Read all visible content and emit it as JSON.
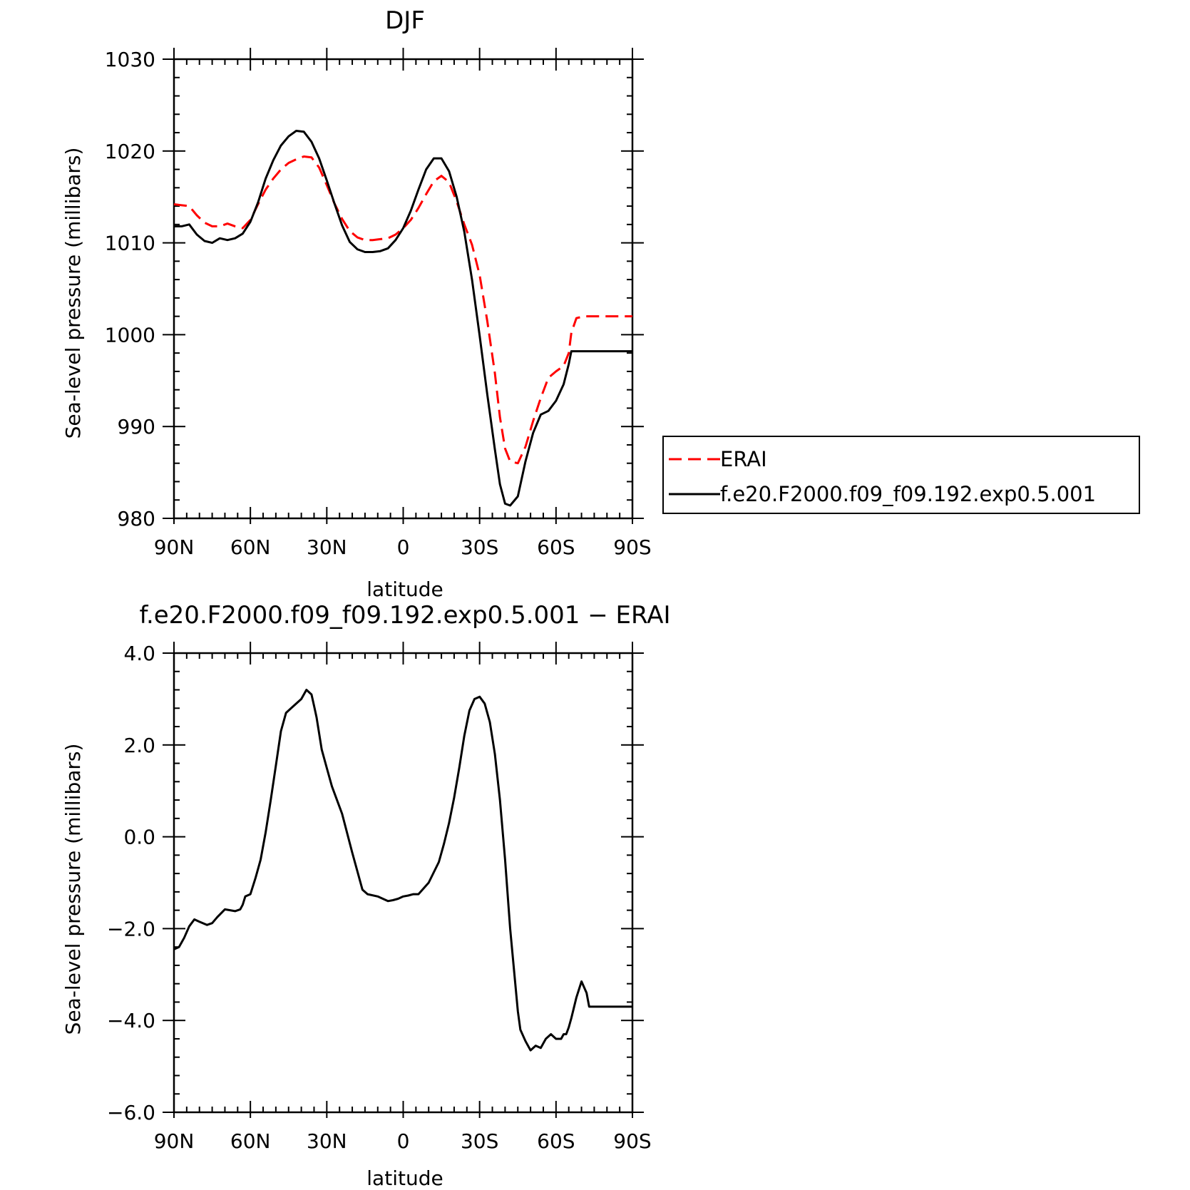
{
  "chart_data": [
    {
      "type": "line",
      "title": "DJF",
      "xlabel": "latitude",
      "ylabel": "Sea-level pressure (millibars)",
      "xlim": [
        90,
        -90
      ],
      "ylim": [
        980,
        1030
      ],
      "xticks": [
        {
          "value": 90,
          "label": "90N"
        },
        {
          "value": 60,
          "label": "60N"
        },
        {
          "value": 30,
          "label": "30N"
        },
        {
          "value": 0,
          "label": "0"
        },
        {
          "value": -30,
          "label": "30S"
        },
        {
          "value": -60,
          "label": "60S"
        },
        {
          "value": -90,
          "label": "90S"
        }
      ],
      "yticks": [
        {
          "value": 980,
          "label": "980"
        },
        {
          "value": 990,
          "label": "990"
        },
        {
          "value": 1000,
          "label": "1000"
        },
        {
          "value": 1010,
          "label": "1010"
        },
        {
          "value": 1020,
          "label": "1020"
        },
        {
          "value": 1030,
          "label": "1030"
        }
      ],
      "legend": "outside-right",
      "series": [
        {
          "name": "ERAI",
          "color": "#ff0000",
          "dash": "dashed",
          "x": [
            90,
            84,
            81,
            78,
            75,
            72,
            69,
            66,
            63,
            60,
            57,
            54,
            51,
            48,
            45,
            42,
            39,
            36,
            33,
            30,
            27,
            24,
            21,
            18,
            15,
            12,
            9,
            6,
            3,
            0,
            -3,
            -6,
            -9,
            -12,
            -15,
            -18,
            -21,
            -24,
            -27,
            -30,
            -33,
            -36,
            -38,
            -40,
            -42,
            -45,
            -48,
            -51,
            -54,
            -57,
            -60,
            -63,
            -65,
            -66,
            -68,
            -71,
            -74,
            -77,
            -80,
            -83,
            -86,
            -88,
            -90
          ],
          "y": [
            1014.2,
            1014.0,
            1013.0,
            1012.2,
            1011.8,
            1011.8,
            1012.1,
            1011.8,
            1011.6,
            1012.5,
            1014.2,
            1015.8,
            1017.0,
            1018.0,
            1018.7,
            1019.1,
            1019.4,
            1019.3,
            1018.2,
            1016.3,
            1014.3,
            1012.6,
            1011.3,
            1010.6,
            1010.3,
            1010.3,
            1010.4,
            1010.5,
            1010.9,
            1011.6,
            1012.5,
            1013.8,
            1015.3,
            1016.7,
            1017.3,
            1016.6,
            1014.5,
            1012.0,
            1009.8,
            1006.5,
            1001.5,
            995.8,
            991.0,
            987.6,
            986.2,
            986.0,
            987.8,
            990.6,
            993.1,
            995.3,
            996.0,
            996.6,
            998.0,
            1000.2,
            1001.8,
            1002.0,
            1002.0,
            1002.0,
            1002.0,
            1002.0,
            1002.0,
            1002.0,
            1002.0
          ]
        },
        {
          "name": "f.e20.F2000.f09_f09.192.exp0.5.001",
          "color": "#000000",
          "dash": "solid",
          "x": [
            90,
            87,
            84,
            81,
            78,
            75,
            72,
            69,
            66,
            63,
            60,
            57,
            54,
            51,
            48,
            45,
            42,
            39,
            36,
            33,
            30,
            27,
            24,
            21,
            18,
            15,
            12,
            9,
            6,
            3,
            0,
            -3,
            -6,
            -9,
            -12,
            -15,
            -18,
            -21,
            -24,
            -27,
            -30,
            -33,
            -36,
            -38,
            -40,
            -42,
            -45,
            -48,
            -51,
            -54,
            -57,
            -60,
            -63,
            -65,
            -66,
            -68,
            -71,
            -74,
            -77,
            -80,
            -83,
            -86,
            -88,
            -90
          ],
          "y": [
            1011.8,
            1011.8,
            1012.0,
            1010.9,
            1010.2,
            1010.0,
            1010.5,
            1010.3,
            1010.5,
            1011.0,
            1012.3,
            1014.4,
            1017.0,
            1019.0,
            1020.6,
            1021.6,
            1022.2,
            1022.1,
            1021.0,
            1019.2,
            1016.8,
            1014.3,
            1011.9,
            1010.1,
            1009.3,
            1009.0,
            1009.0,
            1009.1,
            1009.4,
            1010.3,
            1011.6,
            1013.5,
            1015.8,
            1018.0,
            1019.2,
            1019.2,
            1017.8,
            1015.0,
            1011.2,
            1006.0,
            999.9,
            993.5,
            987.5,
            983.7,
            981.6,
            981.4,
            982.4,
            986.2,
            989.3,
            991.3,
            991.7,
            992.8,
            994.6,
            996.8,
            998.2,
            998.2,
            998.2,
            998.2,
            998.2,
            998.2,
            998.2,
            998.2,
            998.2,
            998.2
          ]
        }
      ]
    },
    {
      "type": "line",
      "title": "f.e20.F2000.f09_f09.192.exp0.5.001 − ERAI",
      "xlabel": "latitude",
      "ylabel": "Sea-level pressure (millibars)",
      "xlim": [
        90,
        -90
      ],
      "ylim": [
        -6,
        4
      ],
      "xticks": [
        {
          "value": 90,
          "label": "90N"
        },
        {
          "value": 60,
          "label": "60N"
        },
        {
          "value": 30,
          "label": "30N"
        },
        {
          "value": 0,
          "label": "0"
        },
        {
          "value": -30,
          "label": "30S"
        },
        {
          "value": -60,
          "label": "60S"
        },
        {
          "value": -90,
          "label": "90S"
        }
      ],
      "yticks": [
        {
          "value": -6,
          "label": "−6.0"
        },
        {
          "value": -4,
          "label": "−4.0"
        },
        {
          "value": -2,
          "label": "−2.0"
        },
        {
          "value": 0,
          "label": "0.0"
        },
        {
          "value": 2,
          "label": "2.0"
        },
        {
          "value": 4,
          "label": "4.0"
        }
      ],
      "series": [
        {
          "name": "f.e20.F2000.f09_f09.192.exp0.5.001 − ERAI",
          "color": "#000000",
          "dash": "solid",
          "x": [
            90,
            88,
            86,
            84,
            82,
            80,
            77,
            75,
            73,
            70,
            68,
            66,
            64,
            63,
            62,
            60,
            58,
            56,
            54,
            52,
            50,
            48,
            46,
            44,
            42,
            40,
            38,
            36,
            35,
            34,
            32,
            30,
            28,
            24,
            20,
            18,
            16,
            14,
            10,
            8,
            6,
            4,
            2,
            0,
            -2,
            -4,
            -6,
            -10,
            -14,
            -16,
            -18,
            -20,
            -22,
            -24,
            -26,
            -28,
            -30,
            -32,
            -34,
            -36,
            -38,
            -40,
            -42,
            -44,
            -45,
            -46,
            -48,
            -50,
            -52,
            -54,
            -56,
            -58,
            -60,
            -62,
            -63,
            -64,
            -65,
            -66,
            -68,
            -70,
            -72,
            -73,
            -74,
            -76,
            -78,
            -80,
            -82,
            -84,
            -86,
            -88,
            -90
          ],
          "y": [
            -2.45,
            -2.4,
            -2.2,
            -1.95,
            -1.8,
            -1.85,
            -1.92,
            -1.88,
            -1.75,
            -1.58,
            -1.6,
            -1.62,
            -1.58,
            -1.48,
            -1.3,
            -1.25,
            -0.9,
            -0.5,
            0.1,
            0.8,
            1.55,
            2.3,
            2.7,
            2.8,
            2.9,
            3.0,
            3.2,
            3.1,
            2.85,
            2.6,
            1.9,
            1.5,
            1.1,
            0.5,
            -0.35,
            -0.75,
            -1.15,
            -1.25,
            -1.3,
            -1.35,
            -1.4,
            -1.38,
            -1.35,
            -1.3,
            -1.28,
            -1.25,
            -1.25,
            -1.0,
            -0.55,
            -0.15,
            0.3,
            0.85,
            1.5,
            2.2,
            2.75,
            3.0,
            3.05,
            2.9,
            2.5,
            1.8,
            0.8,
            -0.5,
            -2.0,
            -3.2,
            -3.8,
            -4.2,
            -4.45,
            -4.65,
            -4.55,
            -4.6,
            -4.4,
            -4.3,
            -4.4,
            -4.4,
            -4.3,
            -4.3,
            -4.15,
            -3.95,
            -3.5,
            -3.15,
            -3.4,
            -3.7,
            -3.7,
            -3.7,
            -3.7,
            -3.7,
            -3.7,
            -3.7,
            -3.7,
            -3.7,
            -3.7
          ]
        }
      ]
    }
  ],
  "legend": {
    "items": [
      {
        "label": "ERAI",
        "color": "#ff0000",
        "dash": "dashed"
      },
      {
        "label": "f.e20.F2000.f09_f09.192.exp0.5.001",
        "color": "#000000",
        "dash": "solid"
      }
    ]
  }
}
